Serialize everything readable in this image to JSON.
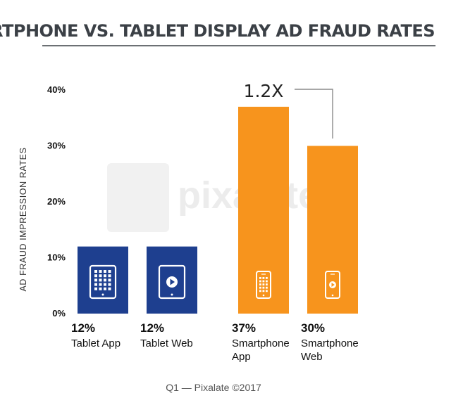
{
  "chart_data": {
    "type": "bar",
    "title": "SMARTPHONE VS. TABLET DISPLAY AD FRAUD RATES",
    "ylabel": "AD FRAUD IMPRESSION RATES",
    "xlabel": "",
    "ylim": [
      0,
      40
    ],
    "yticks": [
      "0%",
      "10%",
      "20%",
      "30%",
      "40%"
    ],
    "grid": false,
    "categories": [
      {
        "value_label": "12%",
        "line1": "Tablet App",
        "line2": "",
        "value": 12,
        "color": "#1e3f8f",
        "icon": "tablet-app-grid-icon"
      },
      {
        "value_label": "12%",
        "line1": "Tablet Web",
        "line2": "",
        "value": 12,
        "color": "#1e3f8f",
        "icon": "tablet-play-icon"
      },
      {
        "value_label": "37%",
        "line1": "Smartphone",
        "line2": "App",
        "value": 37,
        "color": "#f7941d",
        "icon": "smartphone-app-grid-icon"
      },
      {
        "value_label": "30%",
        "line1": "Smartphone",
        "line2": "Web",
        "value": 30,
        "color": "#f7941d",
        "icon": "smartphone-play-icon"
      }
    ],
    "annotation": "1.2X",
    "source": "Q1 — Pixalate ©2017",
    "watermark": "pixalate"
  }
}
